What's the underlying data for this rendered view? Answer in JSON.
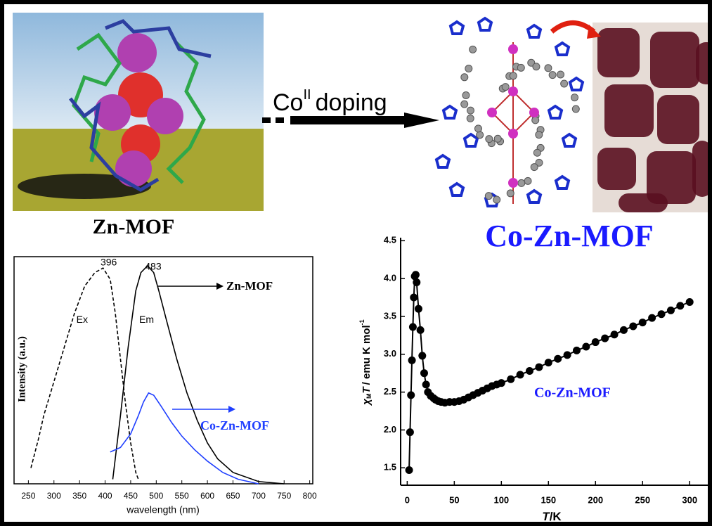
{
  "labels": {
    "zn_mof": "Zn-MOF",
    "doping_prefix": "Co",
    "doping_superscript": "II",
    "doping_suffix": "doping",
    "co_zn_mof": "Co-Zn-MOF"
  },
  "charts": [
    {
      "type": "line",
      "x_label": "wavelength (nm)",
      "y_label": "Intensity (a.u.)",
      "xlim": [
        222,
        806
      ],
      "ylim": [
        0,
        1
      ],
      "xticks": [
        250,
        300,
        350,
        400,
        450,
        500,
        550,
        600,
        650,
        700,
        750,
        800
      ],
      "peaks": [
        396,
        483
      ],
      "annotation": "Zn-MOF",
      "series": [
        {
          "name": "Ex",
          "color": "#000000",
          "dashed": true,
          "x": [
            255,
            270,
            280,
            300,
            320,
            340,
            360,
            380,
            396,
            410,
            420,
            430,
            440,
            450,
            460,
            465
          ],
          "values": [
            0.07,
            0.2,
            0.3,
            0.45,
            0.6,
            0.75,
            0.87,
            0.93,
            0.95,
            0.9,
            0.75,
            0.55,
            0.35,
            0.18,
            0.05,
            0.02
          ]
        },
        {
          "name": "Em",
          "color": "#000000",
          "dashed": false,
          "x": [
            415,
            430,
            445,
            460,
            470,
            483,
            495,
            505,
            520,
            540,
            560,
            580,
            600,
            620,
            650,
            700,
            750
          ],
          "values": [
            0.02,
            0.3,
            0.6,
            0.85,
            0.93,
            0.96,
            0.93,
            0.85,
            0.72,
            0.55,
            0.4,
            0.28,
            0.18,
            0.11,
            0.05,
            0.01,
            0.0
          ]
        },
        {
          "name": "Co-Zn-MOF",
          "color": "#1f3fff",
          "dashed": false,
          "x": [
            410,
            430,
            450,
            465,
            475,
            485,
            495,
            510,
            530,
            550,
            575,
            600,
            630,
            660,
            700
          ],
          "values": [
            0.14,
            0.16,
            0.22,
            0.3,
            0.36,
            0.4,
            0.39,
            0.34,
            0.27,
            0.21,
            0.15,
            0.1,
            0.05,
            0.02,
            0.0
          ]
        }
      ]
    },
    {
      "type": "scatter",
      "x_label": {
        "variable": "T",
        "unit": "/K"
      },
      "y_label": {
        "symbol": "χ",
        "subscript": "M",
        "variable": "T",
        "unit": "/ emu K mol",
        "exponent": "-1"
      },
      "xlim": [
        -7,
        320
      ],
      "ylim": [
        1.27,
        4.54
      ],
      "xticks": [
        0,
        50,
        100,
        150,
        200,
        250,
        300
      ],
      "yticks": [
        1.5,
        {
          "value": 2,
          "label": "2.0"
        },
        2.5,
        {
          "value": 3,
          "label": "3.0"
        },
        3.5,
        {
          "value": 4,
          "label": "4.0"
        },
        4.5
      ],
      "annotation": "Co-Zn-MOF",
      "color": "#000000",
      "x": [
        2,
        3,
        4,
        5,
        6,
        7,
        8,
        9,
        10,
        12,
        14,
        16,
        18,
        20,
        22,
        25,
        28,
        30,
        33,
        36,
        40,
        45,
        50,
        55,
        60,
        65,
        70,
        75,
        80,
        85,
        90,
        95,
        100,
        110,
        120,
        130,
        140,
        150,
        160,
        170,
        180,
        190,
        200,
        210,
        220,
        230,
        240,
        250,
        260,
        270,
        280,
        290,
        300
      ],
      "values": [
        1.47,
        1.97,
        2.46,
        2.92,
        3.36,
        3.75,
        4.03,
        4.05,
        3.95,
        3.6,
        3.32,
        2.98,
        2.75,
        2.6,
        2.5,
        2.45,
        2.42,
        2.4,
        2.38,
        2.37,
        2.36,
        2.37,
        2.37,
        2.38,
        2.4,
        2.43,
        2.46,
        2.49,
        2.52,
        2.55,
        2.58,
        2.6,
        2.62,
        2.67,
        2.73,
        2.78,
        2.83,
        2.89,
        2.94,
        2.99,
        3.05,
        3.1,
        3.16,
        3.21,
        3.26,
        3.32,
        3.37,
        3.42,
        3.48,
        3.53,
        3.58,
        3.64,
        3.69
      ]
    }
  ]
}
